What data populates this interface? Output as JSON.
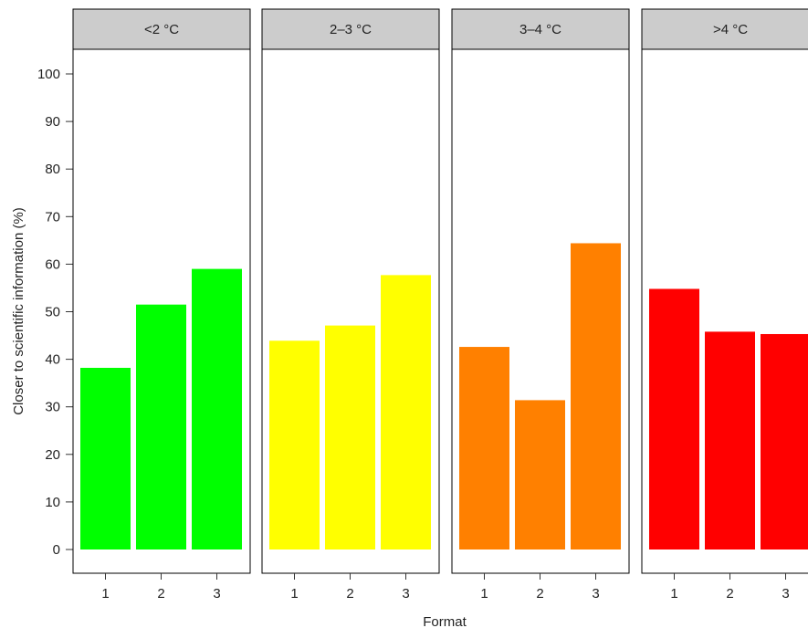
{
  "chart_data": {
    "type": "bar",
    "xlabel": "Format",
    "ylabel": "Closer to scientific information (%)",
    "ylim": [
      0,
      105
    ],
    "yticks": [
      0,
      10,
      20,
      30,
      40,
      50,
      60,
      70,
      80,
      90,
      100
    ],
    "categories": [
      "1",
      "2",
      "3"
    ],
    "grid": false,
    "legend": "none",
    "panels": [
      {
        "label": "<2 °C",
        "color": "#00ff00",
        "values": [
          38.2,
          51.5,
          59.0
        ]
      },
      {
        "label": "2–3 °C",
        "color": "#ffff00",
        "values": [
          43.9,
          47.1,
          57.7
        ]
      },
      {
        "label": "3–4 °C",
        "color": "#ff8000",
        "values": [
          42.6,
          31.4,
          64.4
        ]
      },
      {
        "label": ">4 °C",
        "color": "#ff0000",
        "values": [
          54.8,
          45.8,
          45.3
        ]
      }
    ]
  }
}
